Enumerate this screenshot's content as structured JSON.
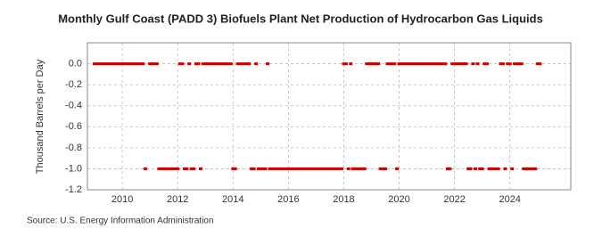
{
  "chart_data": {
    "type": "scatter",
    "title": "Monthly Gulf Coast (PADD 3) Biofuels Plant Net Production of Hydrocarbon Gas Liquids",
    "y_label": "Thousand Barrels per Day",
    "source": "Source: U.S. Energy Information Administration",
    "xlim": [
      2008.74,
      2026.2
    ],
    "xticks": [
      2010,
      2012,
      2014,
      2016,
      2018,
      2020,
      2022,
      2024
    ],
    "ylim": [
      -1.2,
      0.2
    ],
    "yticks": [
      {
        "value": -1.2,
        "label": "-1.2"
      },
      {
        "value": -1.0,
        "label": "-1.0"
      },
      -0.8,
      -0.6,
      -0.4,
      -0.2,
      {
        "value": 0,
        "label": "0.0"
      }
    ],
    "grid": true,
    "color": "#cc0000",
    "x": [
      2009,
      2009.08,
      2009.17,
      2009.25,
      2009.33,
      2009.42,
      2009.5,
      2009.58,
      2009.67,
      2009.75,
      2009.83,
      2009.92,
      2010,
      2010.08,
      2010.17,
      2010.25,
      2010.33,
      2010.42,
      2010.5,
      2010.58,
      2010.67,
      2010.75,
      2010.83,
      2010.92,
      2011,
      2011.08,
      2011.17,
      2011.25,
      2011.33,
      2011.42,
      2011.5,
      2011.58,
      2011.67,
      2011.75,
      2011.83,
      2011.92,
      2012,
      2012.08,
      2012.17,
      2012.25,
      2012.33,
      2012.42,
      2012.5,
      2012.58,
      2012.67,
      2012.75,
      2012.83,
      2012.92,
      2013,
      2013.08,
      2013.17,
      2013.25,
      2013.33,
      2013.42,
      2013.5,
      2013.58,
      2013.67,
      2013.75,
      2013.83,
      2013.92,
      2014,
      2014.08,
      2014.17,
      2014.25,
      2014.33,
      2014.42,
      2014.5,
      2014.58,
      2014.67,
      2014.75,
      2014.83,
      2014.92,
      2015,
      2015.08,
      2015.17,
      2015.25,
      2015.33,
      2015.42,
      2015.5,
      2015.58,
      2015.67,
      2015.75,
      2015.83,
      2015.92,
      2016,
      2016.08,
      2016.17,
      2016.25,
      2016.33,
      2016.42,
      2016.5,
      2016.58,
      2016.67,
      2016.75,
      2016.83,
      2016.92,
      2017,
      2017.08,
      2017.17,
      2017.25,
      2017.33,
      2017.42,
      2017.5,
      2017.58,
      2017.67,
      2017.75,
      2017.83,
      2017.92,
      2018,
      2018.08,
      2018.17,
      2018.25,
      2018.33,
      2018.42,
      2018.5,
      2018.58,
      2018.67,
      2018.75,
      2018.83,
      2018.92,
      2019,
      2019.08,
      2019.17,
      2019.25,
      2019.33,
      2019.42,
      2019.5,
      2019.58,
      2019.67,
      2019.75,
      2019.83,
      2019.92,
      2020,
      2020.08,
      2020.17,
      2020.25,
      2020.33,
      2020.42,
      2020.5,
      2020.58,
      2020.67,
      2020.75,
      2020.83,
      2020.92,
      2021,
      2021.08,
      2021.17,
      2021.25,
      2021.33,
      2021.42,
      2021.5,
      2021.58,
      2021.67,
      2021.75,
      2021.83,
      2021.92,
      2022,
      2022.08,
      2022.17,
      2022.25,
      2022.33,
      2022.42,
      2022.5,
      2022.58,
      2022.67,
      2022.75,
      2022.83,
      2022.92,
      2023,
      2023.08,
      2023.17,
      2023.25,
      2023.33,
      2023.42,
      2023.5,
      2023.58,
      2023.67,
      2023.75,
      2023.83,
      2023.92,
      2024,
      2024.08,
      2024.17,
      2024.25,
      2024.33,
      2024.42,
      2024.5,
      2024.58,
      2024.67,
      2024.75,
      2024.83,
      2024.92,
      2025,
      2025.08
    ],
    "values": [
      0,
      0,
      0,
      0,
      0,
      0,
      0,
      0,
      0,
      0,
      0,
      0,
      0,
      0,
      0,
      0,
      0,
      0,
      0,
      0,
      0,
      0,
      -1,
      null,
      0,
      0,
      0,
      0,
      -1,
      -1,
      -1,
      -1,
      -1,
      -1,
      -1,
      -1,
      -1,
      0,
      0,
      -1,
      -1,
      0,
      -1,
      -1,
      0,
      0,
      -1,
      0,
      0,
      0,
      0,
      0,
      0,
      0,
      0,
      0,
      0,
      0,
      0,
      0,
      -1,
      -1,
      0,
      0,
      0,
      0,
      0,
      0,
      -1,
      -1,
      0,
      -1,
      -1,
      -1,
      -1,
      0,
      -1,
      -1,
      -1,
      -1,
      -1,
      -1,
      -1,
      -1,
      -1,
      -1,
      -1,
      -1,
      -1,
      -1,
      -1,
      -1,
      -1,
      -1,
      -1,
      -1,
      -1,
      -1,
      -1,
      -1,
      -1,
      -1,
      -1,
      -1,
      -1,
      -1,
      -1,
      -1,
      0,
      0,
      -1,
      0,
      -1,
      -1,
      -1,
      -1,
      -1,
      -1,
      0,
      0,
      0,
      0,
      0,
      0,
      -1,
      -1,
      -1,
      0,
      0,
      0,
      0,
      -1,
      0,
      0,
      0,
      0,
      0,
      0,
      0,
      0,
      0,
      0,
      0,
      0,
      0,
      0,
      0,
      0,
      0,
      0,
      0,
      0,
      0,
      -1,
      -1,
      0,
      0,
      0,
      0,
      0,
      0,
      0,
      -1,
      -1,
      0,
      -1,
      0,
      -1,
      -1,
      0,
      0,
      -1,
      -1,
      -1,
      -1,
      -1,
      0,
      0,
      -1,
      0,
      0,
      -1,
      0,
      0,
      0,
      0,
      -1,
      -1,
      -1,
      -1,
      -1,
      -1,
      0,
      0
    ]
  }
}
